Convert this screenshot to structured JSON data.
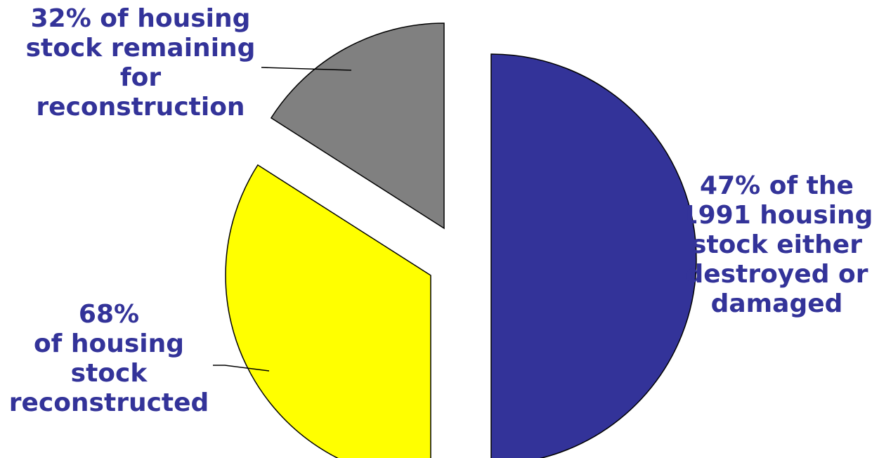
{
  "chart_data": {
    "type": "pie",
    "exploded": true,
    "slices": [
      {
        "name": "destroyed-or-damaged",
        "value": 47,
        "color": "#333399",
        "label_lines": [
          "47% of the",
          "1991 housing",
          "stock either",
          "destroyed or",
          "damaged"
        ]
      },
      {
        "name": "reconstructed",
        "value": 32,
        "color": "#ffff00",
        "label_lines": [
          "68%",
          "of housing",
          "stock",
          "reconstructed"
        ]
      },
      {
        "name": "remaining",
        "value": 15,
        "color": "#808080",
        "label_lines": [
          "32% of housing",
          "stock remaining",
          "for",
          "reconstruction"
        ]
      }
    ]
  }
}
